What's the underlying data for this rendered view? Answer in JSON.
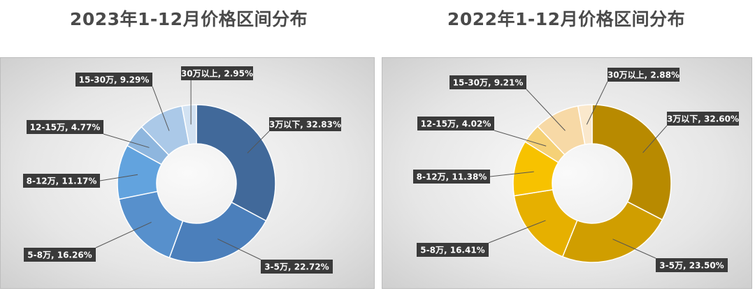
{
  "chart_data": [
    {
      "type": "pie",
      "title": "2023年1-12月价格区间分布",
      "categories": [
        "3万以下",
        "3-5万",
        "5-8万",
        "8-12万",
        "12-15万",
        "15-30万",
        "30万以上"
      ],
      "values": [
        32.83,
        22.72,
        16.26,
        11.17,
        4.77,
        9.29,
        2.95
      ],
      "labels": [
        "3万以下, 32.83%",
        "3-5万, 22.72%",
        "5-8万, 16.26%",
        "8-12万, 11.17%",
        "12-15万, 4.77%",
        "15-30万, 9.29%",
        "30万以上, 2.95%"
      ],
      "colors": [
        "#41699a",
        "#4b7fbb",
        "#5790cc",
        "#62a3de",
        "#8eb6de",
        "#abc9e8",
        "#d2e2f2"
      ]
    },
    {
      "type": "pie",
      "title": "2022年1-12月价格区间分布",
      "categories": [
        "3万以下",
        "3-5万",
        "5-8万",
        "8-12万",
        "12-15万",
        "15-30万",
        "30万以上"
      ],
      "values": [
        32.6,
        23.5,
        16.41,
        11.38,
        4.02,
        9.21,
        2.88
      ],
      "labels": [
        "3万以下, 32.60%",
        "3-5万, 23.50%",
        "5-8万, 16.41%",
        "8-12万, 11.38%",
        "12-15万, 4.02%",
        "15-30万, 9.21%",
        "30万以上, 2.88%"
      ],
      "colors": [
        "#b88a00",
        "#d09e00",
        "#e6b000",
        "#f7c200",
        "#f5d177",
        "#f7d9a6",
        "#fae8cc"
      ]
    }
  ]
}
